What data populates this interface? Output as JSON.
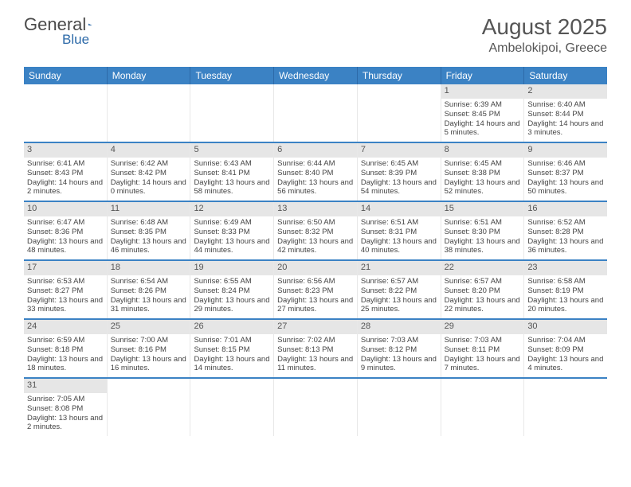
{
  "logo": {
    "text1": "General",
    "text2": "Blue"
  },
  "title": "August 2025",
  "location": "Ambelokipoi, Greece",
  "header_bg": "#3b82c4",
  "row_divider": "#3b82c4",
  "daynum_bg": "#e6e6e6",
  "text_color": "#444444",
  "days_of_week": [
    "Sunday",
    "Monday",
    "Tuesday",
    "Wednesday",
    "Thursday",
    "Friday",
    "Saturday"
  ],
  "weeks": [
    [
      {
        "n": "",
        "lines": []
      },
      {
        "n": "",
        "lines": []
      },
      {
        "n": "",
        "lines": []
      },
      {
        "n": "",
        "lines": []
      },
      {
        "n": "",
        "lines": []
      },
      {
        "n": "1",
        "lines": [
          "Sunrise: 6:39 AM",
          "Sunset: 8:45 PM",
          "Daylight: 14 hours and 5 minutes."
        ]
      },
      {
        "n": "2",
        "lines": [
          "Sunrise: 6:40 AM",
          "Sunset: 8:44 PM",
          "Daylight: 14 hours and 3 minutes."
        ]
      }
    ],
    [
      {
        "n": "3",
        "lines": [
          "Sunrise: 6:41 AM",
          "Sunset: 8:43 PM",
          "Daylight: 14 hours and 2 minutes."
        ]
      },
      {
        "n": "4",
        "lines": [
          "Sunrise: 6:42 AM",
          "Sunset: 8:42 PM",
          "Daylight: 14 hours and 0 minutes."
        ]
      },
      {
        "n": "5",
        "lines": [
          "Sunrise: 6:43 AM",
          "Sunset: 8:41 PM",
          "Daylight: 13 hours and 58 minutes."
        ]
      },
      {
        "n": "6",
        "lines": [
          "Sunrise: 6:44 AM",
          "Sunset: 8:40 PM",
          "Daylight: 13 hours and 56 minutes."
        ]
      },
      {
        "n": "7",
        "lines": [
          "Sunrise: 6:45 AM",
          "Sunset: 8:39 PM",
          "Daylight: 13 hours and 54 minutes."
        ]
      },
      {
        "n": "8",
        "lines": [
          "Sunrise: 6:45 AM",
          "Sunset: 8:38 PM",
          "Daylight: 13 hours and 52 minutes."
        ]
      },
      {
        "n": "9",
        "lines": [
          "Sunrise: 6:46 AM",
          "Sunset: 8:37 PM",
          "Daylight: 13 hours and 50 minutes."
        ]
      }
    ],
    [
      {
        "n": "10",
        "lines": [
          "Sunrise: 6:47 AM",
          "Sunset: 8:36 PM",
          "Daylight: 13 hours and 48 minutes."
        ]
      },
      {
        "n": "11",
        "lines": [
          "Sunrise: 6:48 AM",
          "Sunset: 8:35 PM",
          "Daylight: 13 hours and 46 minutes."
        ]
      },
      {
        "n": "12",
        "lines": [
          "Sunrise: 6:49 AM",
          "Sunset: 8:33 PM",
          "Daylight: 13 hours and 44 minutes."
        ]
      },
      {
        "n": "13",
        "lines": [
          "Sunrise: 6:50 AM",
          "Sunset: 8:32 PM",
          "Daylight: 13 hours and 42 minutes."
        ]
      },
      {
        "n": "14",
        "lines": [
          "Sunrise: 6:51 AM",
          "Sunset: 8:31 PM",
          "Daylight: 13 hours and 40 minutes."
        ]
      },
      {
        "n": "15",
        "lines": [
          "Sunrise: 6:51 AM",
          "Sunset: 8:30 PM",
          "Daylight: 13 hours and 38 minutes."
        ]
      },
      {
        "n": "16",
        "lines": [
          "Sunrise: 6:52 AM",
          "Sunset: 8:28 PM",
          "Daylight: 13 hours and 36 minutes."
        ]
      }
    ],
    [
      {
        "n": "17",
        "lines": [
          "Sunrise: 6:53 AM",
          "Sunset: 8:27 PM",
          "Daylight: 13 hours and 33 minutes."
        ]
      },
      {
        "n": "18",
        "lines": [
          "Sunrise: 6:54 AM",
          "Sunset: 8:26 PM",
          "Daylight: 13 hours and 31 minutes."
        ]
      },
      {
        "n": "19",
        "lines": [
          "Sunrise: 6:55 AM",
          "Sunset: 8:24 PM",
          "Daylight: 13 hours and 29 minutes."
        ]
      },
      {
        "n": "20",
        "lines": [
          "Sunrise: 6:56 AM",
          "Sunset: 8:23 PM",
          "Daylight: 13 hours and 27 minutes."
        ]
      },
      {
        "n": "21",
        "lines": [
          "Sunrise: 6:57 AM",
          "Sunset: 8:22 PM",
          "Daylight: 13 hours and 25 minutes."
        ]
      },
      {
        "n": "22",
        "lines": [
          "Sunrise: 6:57 AM",
          "Sunset: 8:20 PM",
          "Daylight: 13 hours and 22 minutes."
        ]
      },
      {
        "n": "23",
        "lines": [
          "Sunrise: 6:58 AM",
          "Sunset: 8:19 PM",
          "Daylight: 13 hours and 20 minutes."
        ]
      }
    ],
    [
      {
        "n": "24",
        "lines": [
          "Sunrise: 6:59 AM",
          "Sunset: 8:18 PM",
          "Daylight: 13 hours and 18 minutes."
        ]
      },
      {
        "n": "25",
        "lines": [
          "Sunrise: 7:00 AM",
          "Sunset: 8:16 PM",
          "Daylight: 13 hours and 16 minutes."
        ]
      },
      {
        "n": "26",
        "lines": [
          "Sunrise: 7:01 AM",
          "Sunset: 8:15 PM",
          "Daylight: 13 hours and 14 minutes."
        ]
      },
      {
        "n": "27",
        "lines": [
          "Sunrise: 7:02 AM",
          "Sunset: 8:13 PM",
          "Daylight: 13 hours and 11 minutes."
        ]
      },
      {
        "n": "28",
        "lines": [
          "Sunrise: 7:03 AM",
          "Sunset: 8:12 PM",
          "Daylight: 13 hours and 9 minutes."
        ]
      },
      {
        "n": "29",
        "lines": [
          "Sunrise: 7:03 AM",
          "Sunset: 8:11 PM",
          "Daylight: 13 hours and 7 minutes."
        ]
      },
      {
        "n": "30",
        "lines": [
          "Sunrise: 7:04 AM",
          "Sunset: 8:09 PM",
          "Daylight: 13 hours and 4 minutes."
        ]
      }
    ],
    [
      {
        "n": "31",
        "lines": [
          "Sunrise: 7:05 AM",
          "Sunset: 8:08 PM",
          "Daylight: 13 hours and 2 minutes."
        ]
      },
      {
        "n": "",
        "lines": []
      },
      {
        "n": "",
        "lines": []
      },
      {
        "n": "",
        "lines": []
      },
      {
        "n": "",
        "lines": []
      },
      {
        "n": "",
        "lines": []
      },
      {
        "n": "",
        "lines": []
      }
    ]
  ]
}
